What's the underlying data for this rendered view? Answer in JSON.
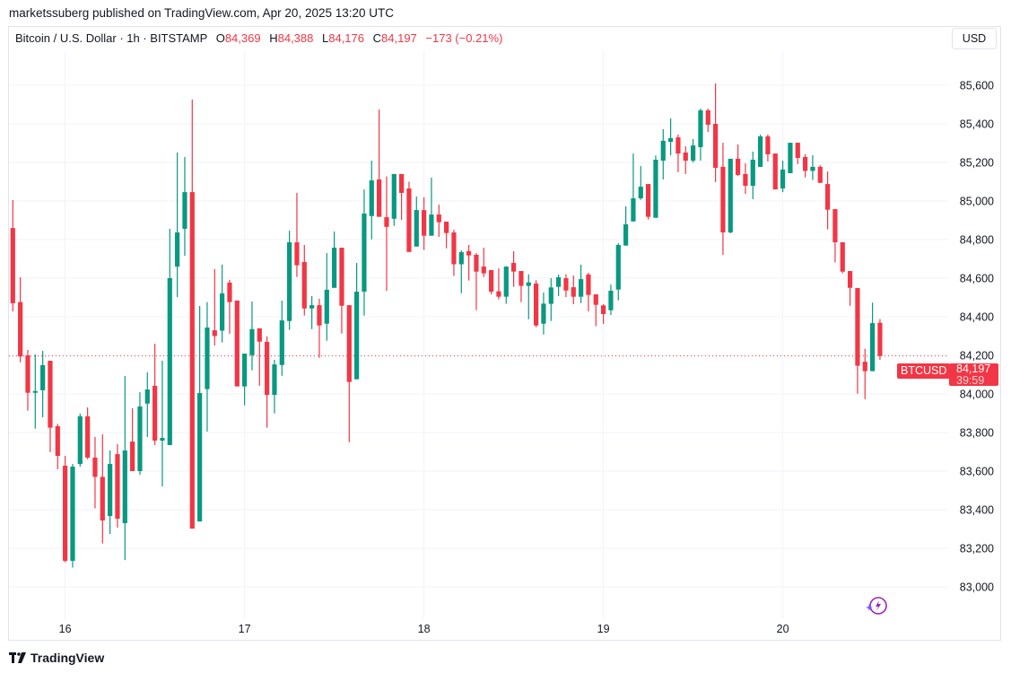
{
  "publisher_line": "marketssuberg published on TradingView.com, Apr 20, 2025 13:20 UTC",
  "legend": {
    "symbol_desc": "Bitcoin / U.S. Dollar · 1h · BITSTAMP",
    "o_label": "O",
    "o": "84,369",
    "h_label": "H",
    "h": "84,388",
    "l_label": "L",
    "l": "84,176",
    "c_label": "C",
    "c": "84,197",
    "change": "−173 (−0.21%)"
  },
  "currency_button": "USD",
  "symbol_badge": "BTCUSD",
  "current_price": "84,197",
  "countdown": "39:59",
  "brand": "TradingView",
  "icons": {
    "assistant": "sparkle-bolt-icon",
    "logo": "tradingview-logo-icon"
  },
  "colors": {
    "up": "#089981",
    "down": "#f23645",
    "grid": "#f0f3fa",
    "assistant": "#9c27b0"
  },
  "chart_data": {
    "type": "candlestick",
    "interval": "1h",
    "ylim": [
      82850,
      85750
    ],
    "y_ticks": [
      "83,000",
      "83,200",
      "83,400",
      "83,600",
      "83,800",
      "84,000",
      "84,200",
      "84,400",
      "84,600",
      "84,800",
      "85,000",
      "85,200",
      "85,400",
      "85,600"
    ],
    "y_tick_values": [
      83000,
      83200,
      83400,
      83600,
      83800,
      84000,
      84200,
      84400,
      84600,
      84800,
      85000,
      85200,
      85400,
      85600
    ],
    "x_ticks": [
      {
        "label": "16",
        "candle": 7
      },
      {
        "label": "17",
        "candle": 31
      },
      {
        "label": "18",
        "candle": 55
      },
      {
        "label": "19",
        "candle": 79
      },
      {
        "label": "20",
        "candle": 103
      }
    ],
    "grid": true,
    "last_price": 84197,
    "ohlc_order": [
      "open",
      "high",
      "low",
      "close"
    ],
    "candles": [
      [
        84860,
        85005,
        84428,
        84470
      ],
      [
        84476,
        84605,
        84164,
        84194
      ],
      [
        84200,
        84228,
        83913,
        84006
      ],
      [
        84006,
        84205,
        83820,
        84015
      ],
      [
        84019,
        84223,
        83879,
        84149
      ],
      [
        84172,
        84172,
        83698,
        83825
      ],
      [
        83833,
        83845,
        83609,
        83679
      ],
      [
        83628,
        83679,
        83127,
        83135
      ],
      [
        83135,
        83637,
        83100,
        83623
      ],
      [
        83637,
        83898,
        83623,
        83884
      ],
      [
        83884,
        83930,
        83662,
        83670
      ],
      [
        83670,
        83777,
        83407,
        83570
      ],
      [
        83570,
        83791,
        83225,
        83344
      ],
      [
        83367,
        83707,
        83274,
        83637
      ],
      [
        83688,
        83740,
        83307,
        83353
      ],
      [
        83330,
        84093,
        83139,
        83707
      ],
      [
        83753,
        83926,
        83600,
        83600
      ],
      [
        83600,
        84009,
        83581,
        83935
      ],
      [
        83950,
        84112,
        83777,
        84023
      ],
      [
        84042,
        84260,
        83735,
        83758
      ],
      [
        83758,
        84172,
        83521,
        83772
      ],
      [
        83735,
        84856,
        83735,
        84600
      ],
      [
        84660,
        85251,
        84502,
        84837
      ],
      [
        84856,
        85228,
        84716,
        85046
      ],
      [
        85046,
        85526,
        83302,
        83302
      ],
      [
        83339,
        84456,
        83339,
        84005
      ],
      [
        84025,
        84476,
        83805,
        84344
      ],
      [
        84330,
        84647,
        84251,
        84300
      ],
      [
        84328,
        84670,
        84267,
        84521
      ],
      [
        84577,
        84591,
        84312,
        84476
      ],
      [
        84484,
        84484,
        84039,
        84039
      ],
      [
        84039,
        84209,
        83941,
        84209
      ],
      [
        84201,
        84479,
        84122,
        84336
      ],
      [
        84340,
        84340,
        84042,
        84271
      ],
      [
        84270,
        84298,
        83825,
        83995
      ],
      [
        83995,
        84177,
        83899,
        84153
      ],
      [
        84150,
        84484,
        84094,
        84381
      ],
      [
        84378,
        84846,
        84332,
        84786
      ],
      [
        84786,
        85042,
        84606,
        84667
      ],
      [
        84684,
        84772,
        84406,
        84443
      ],
      [
        84443,
        84507,
        84336,
        84460
      ],
      [
        84460,
        84493,
        84187,
        84355
      ],
      [
        84364,
        84730,
        84276,
        84540
      ],
      [
        84550,
        84842,
        84550,
        84758
      ],
      [
        84758,
        84758,
        84313,
        84457
      ],
      [
        84460,
        84460,
        83750,
        84062
      ],
      [
        84076,
        84679,
        84076,
        84530
      ],
      [
        84530,
        85060,
        84406,
        84935
      ],
      [
        84922,
        85209,
        84801,
        85107
      ],
      [
        85112,
        85474,
        84918,
        84918
      ],
      [
        84916,
        85127,
        84534,
        84866
      ],
      [
        84908,
        85140,
        84871,
        85140
      ],
      [
        85140,
        85140,
        84902,
        85042
      ],
      [
        85065,
        85100,
        84736,
        84736
      ],
      [
        84764,
        85023,
        84764,
        84953
      ],
      [
        84953,
        85019,
        84746,
        84820
      ],
      [
        84820,
        85121,
        84820,
        84930
      ],
      [
        84930,
        84981,
        84814,
        84890
      ],
      [
        84893,
        84893,
        84755,
        84834
      ],
      [
        84837,
        84851,
        84611,
        84672
      ],
      [
        84672,
        84744,
        84522,
        84735
      ],
      [
        84740,
        84772,
        84588,
        84718
      ],
      [
        84721,
        84730,
        84434,
        84634
      ],
      [
        84660,
        84758,
        84606,
        84625
      ],
      [
        84642,
        84642,
        84516,
        84530
      ],
      [
        84532,
        84651,
        84490,
        84504
      ],
      [
        84504,
        84662,
        84467,
        84660
      ],
      [
        84679,
        84740,
        84555,
        84634
      ],
      [
        84637,
        84637,
        84476,
        84560
      ],
      [
        84560,
        84620,
        84387,
        84578
      ],
      [
        84572,
        84589,
        84346,
        84355
      ],
      [
        84364,
        84526,
        84308,
        84468
      ],
      [
        84467,
        84600,
        84378,
        84552
      ],
      [
        84555,
        84619,
        84507,
        84605
      ],
      [
        84600,
        84620,
        84502,
        84536
      ],
      [
        84553,
        84614,
        84465,
        84504
      ],
      [
        84504,
        84670,
        84471,
        84595
      ],
      [
        84619,
        84628,
        84428,
        84513
      ],
      [
        84516,
        84516,
        84351,
        84462
      ],
      [
        84459,
        84465,
        84363,
        84414
      ],
      [
        84434,
        84567,
        84409,
        84535
      ],
      [
        84541,
        84781,
        84485,
        84772
      ],
      [
        84769,
        84972,
        84769,
        84879
      ],
      [
        84894,
        85246,
        84894,
        85014
      ],
      [
        85014,
        85181,
        85006,
        85074
      ],
      [
        85088,
        85088,
        84904,
        84918
      ],
      [
        84913,
        85236,
        84913,
        85214
      ],
      [
        85209,
        85372,
        85112,
        85312
      ],
      [
        85307,
        85428,
        85237,
        85326
      ],
      [
        85330,
        85344,
        85149,
        85246
      ],
      [
        85251,
        85284,
        85140,
        85209
      ],
      [
        85209,
        85321,
        85200,
        85288
      ],
      [
        85279,
        85479,
        85209,
        85470
      ],
      [
        85470,
        85479,
        85358,
        85395
      ],
      [
        85400,
        85609,
        85098,
        85172
      ],
      [
        85177,
        85302,
        84721,
        84837
      ],
      [
        84837,
        85219,
        84833,
        85219
      ],
      [
        85219,
        85293,
        85130,
        85135
      ],
      [
        85140,
        85195,
        85037,
        85079
      ],
      [
        85079,
        85256,
        85009,
        85214
      ],
      [
        85177,
        85344,
        85177,
        85335
      ],
      [
        85335,
        85344,
        85205,
        85242
      ],
      [
        85246,
        85246,
        85060,
        85060
      ],
      [
        85065,
        85209,
        85046,
        85163
      ],
      [
        85144,
        85302,
        85144,
        85302
      ],
      [
        85302,
        85302,
        85191,
        85223
      ],
      [
        85228,
        85242,
        85123,
        85156
      ],
      [
        85156,
        85237,
        85109,
        85177
      ],
      [
        85177,
        85186,
        85094,
        85094
      ],
      [
        85088,
        85153,
        84853,
        84955
      ],
      [
        84958,
        84958,
        84681,
        84786
      ],
      [
        84786,
        84786,
        84625,
        84634
      ],
      [
        84637,
        84637,
        84457,
        84550
      ],
      [
        84549,
        84549,
        84001,
        84146
      ],
      [
        84167,
        84234,
        83973,
        84118
      ],
      [
        84118,
        84473,
        84118,
        84367
      ],
      [
        84369,
        84388,
        84176,
        84197
      ]
    ]
  }
}
